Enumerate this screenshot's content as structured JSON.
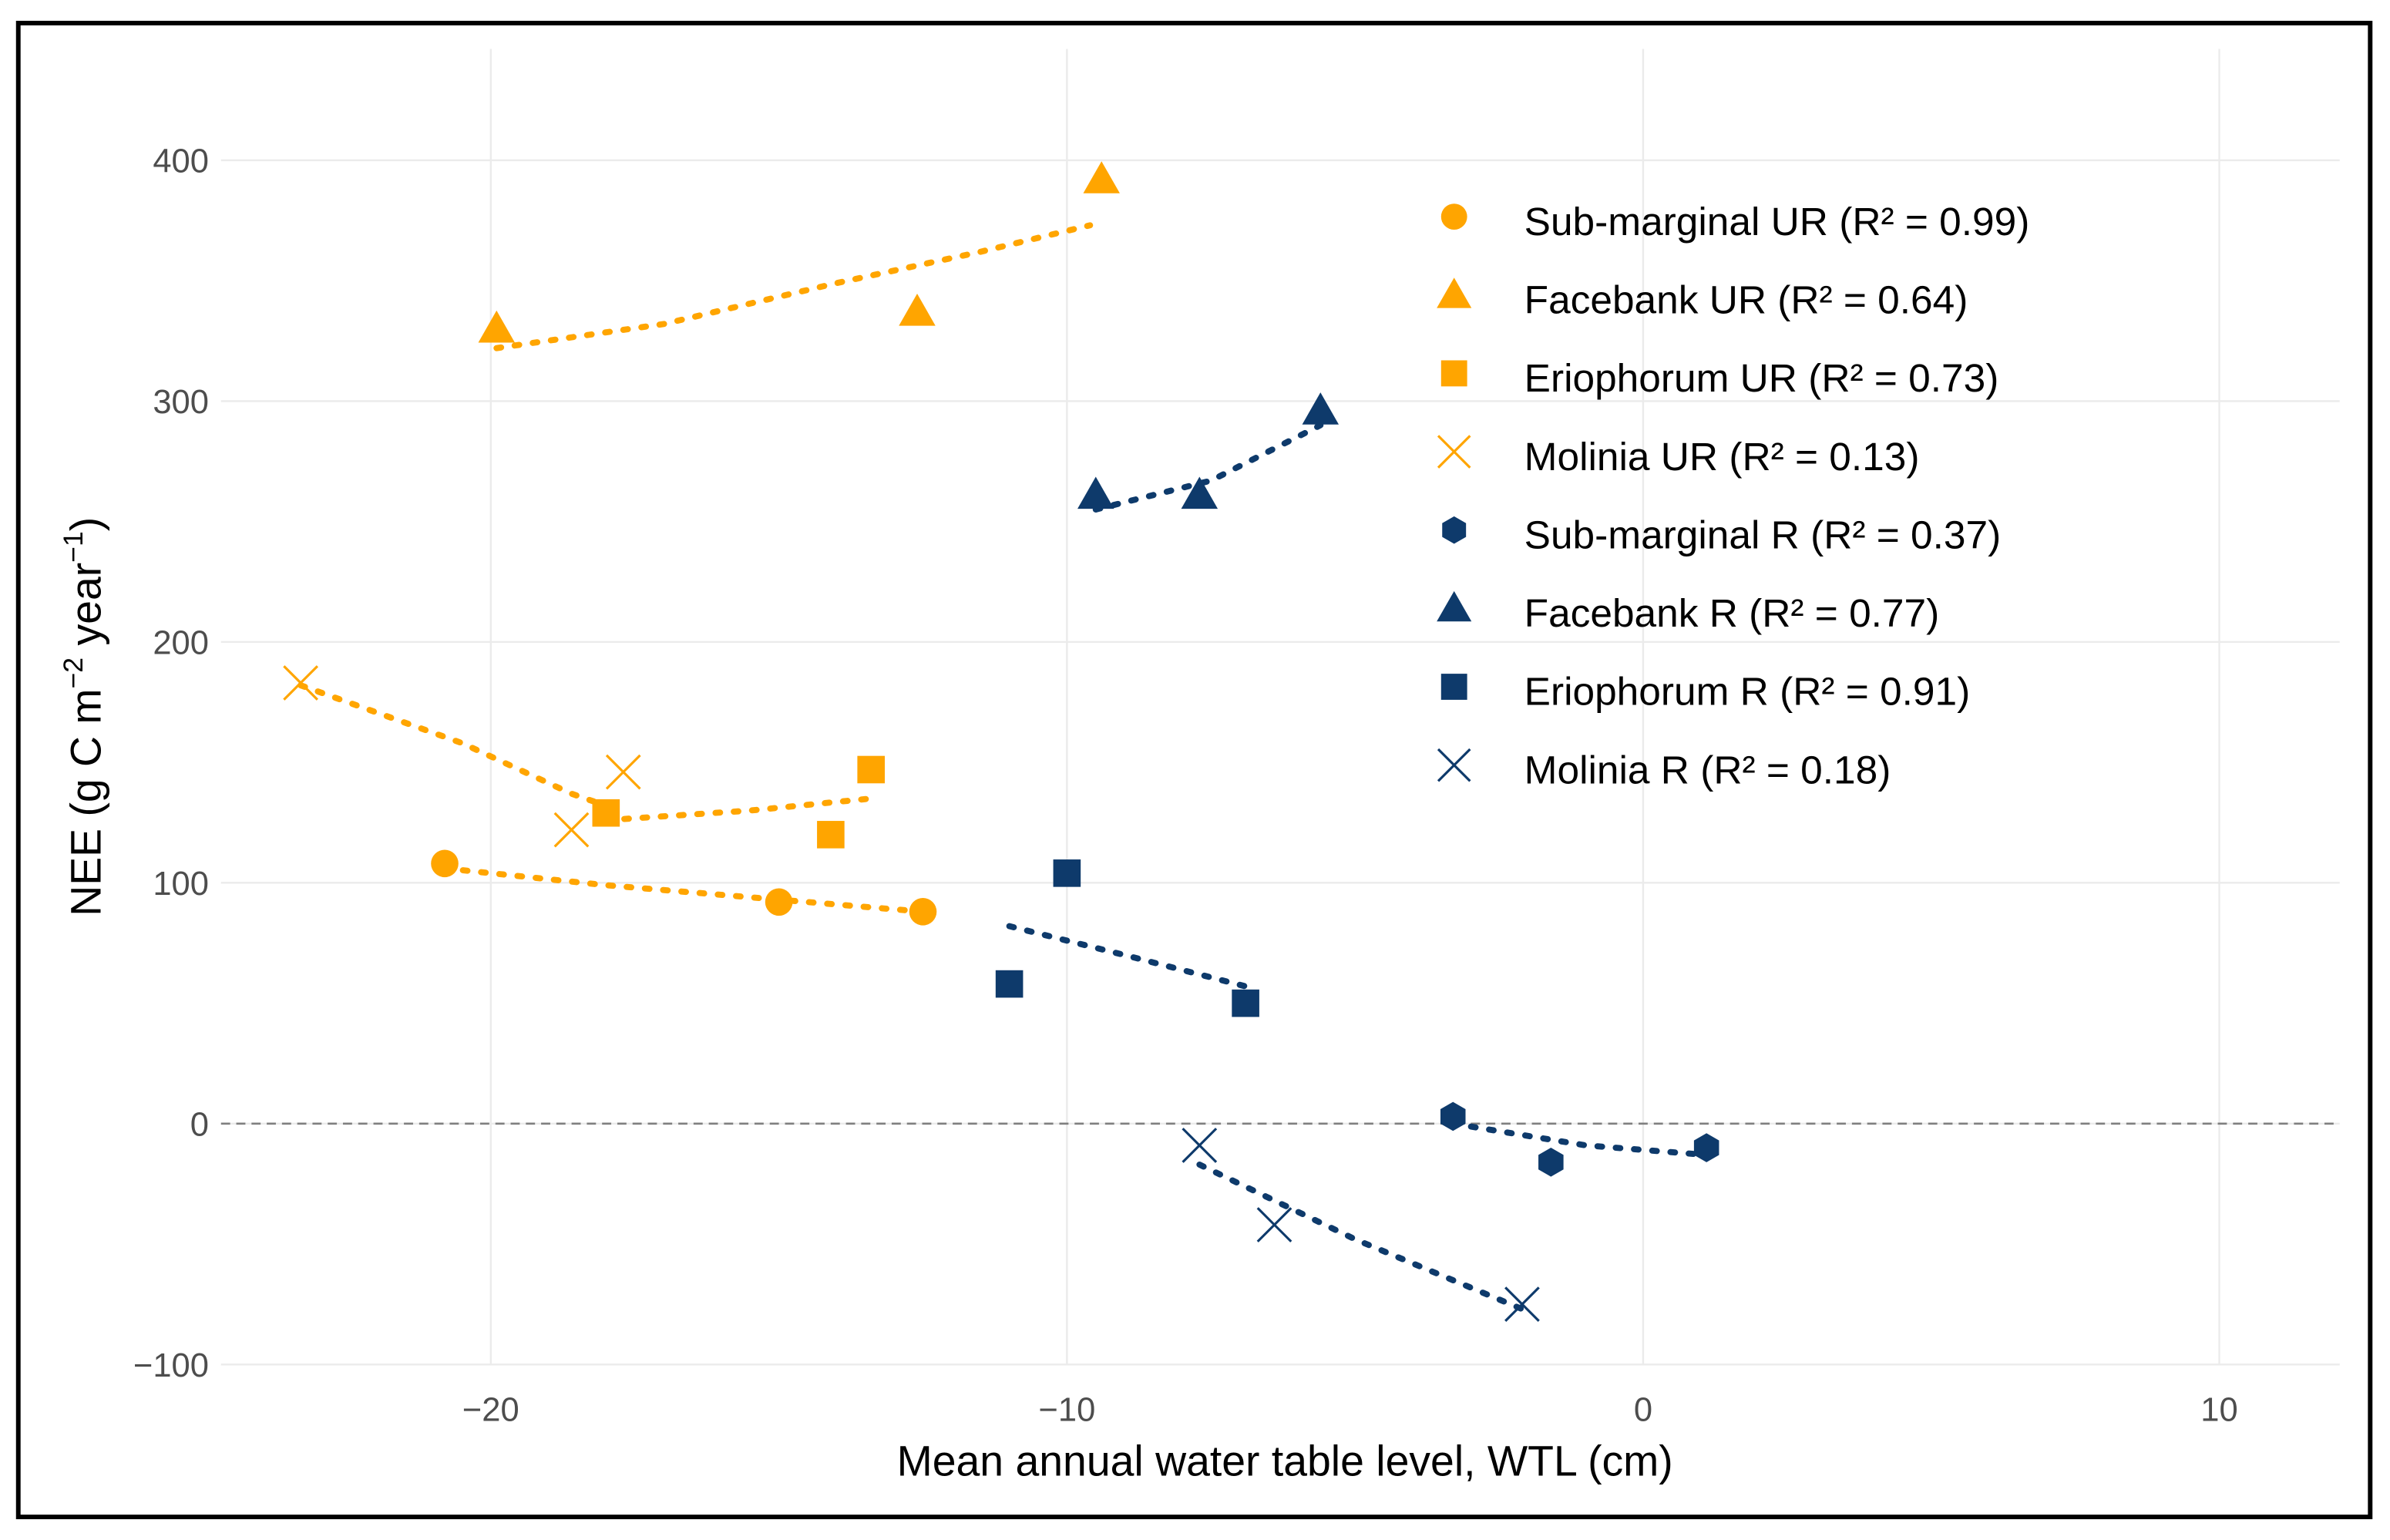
{
  "chart_data": {
    "type": "scatter",
    "title": "",
    "xlabel": "Mean annual water table level, WTL (cm)",
    "ylabel": {
      "main": "NEE (g C m",
      "sup1": "−2",
      "mid": " year",
      "sup2": "−1",
      "end": ")"
    },
    "xlim": [
      -25,
      12
    ],
    "ylim": [
      -100,
      445
    ],
    "xticks": [
      -20,
      -10,
      0,
      10
    ],
    "xtick_labels": [
      "−20",
      "−10",
      "0",
      "10"
    ],
    "yticks": [
      -100,
      0,
      100,
      200,
      300,
      400
    ],
    "ytick_labels": [
      "−100",
      "0",
      "100",
      "200",
      "300",
      "400"
    ],
    "grid": true,
    "reference_line": {
      "y": 0,
      "style": "dashed"
    },
    "legend_position": "top-right",
    "colors": {
      "UR": "#FFA500",
      "R": "#0E3A6B"
    },
    "series": [
      {
        "name": "Sub-marginal UR (R² = 0.99)",
        "group": "UR",
        "marker": "circle",
        "x": [
          -20.8,
          -15.0,
          -12.5
        ],
        "y": [
          108,
          92,
          88
        ],
        "trend": [
          [
            -20.8,
            106
          ],
          [
            -18,
            99
          ],
          [
            -15,
            93
          ],
          [
            -12.5,
            88
          ]
        ]
      },
      {
        "name": "Facebank UR (R² = 0.64)",
        "group": "UR",
        "marker": "triangle",
        "x": [
          -19.9,
          -12.6,
          -9.4
        ],
        "y": [
          330,
          337,
          392
        ],
        "trend": [
          [
            -19.9,
            322
          ],
          [
            -17,
            332
          ],
          [
            -14,
            349
          ],
          [
            -11.5,
            362
          ],
          [
            -9.6,
            373
          ]
        ]
      },
      {
        "name": "Eriophorum UR (R² = 0.73)",
        "group": "UR",
        "marker": "square",
        "x": [
          -18.0,
          -14.1,
          -13.4
        ],
        "y": [
          129,
          120,
          147
        ],
        "trend": [
          [
            -18.0,
            126
          ],
          [
            -15.5,
            130
          ],
          [
            -13.4,
            135
          ]
        ]
      },
      {
        "name": "Molinia UR (R² = 0.13)",
        "group": "UR",
        "marker": "x",
        "x": [
          -23.3,
          -18.6,
          -17.7
        ],
        "y": [
          183,
          122,
          146
        ],
        "trend": [
          [
            -23.3,
            182
          ],
          [
            -20.5,
            158
          ],
          [
            -18.6,
            137
          ],
          [
            -18.0,
            132
          ]
        ]
      },
      {
        "name": "Sub-marginal R (R² = 0.37)",
        "group": "R",
        "marker": "hexagon",
        "x": [
          -3.3,
          -1.6,
          1.1
        ],
        "y": [
          3,
          -16,
          -10
        ],
        "trend": [
          [
            -3.3,
            0
          ],
          [
            -1,
            -9
          ],
          [
            1.1,
            -13
          ]
        ]
      },
      {
        "name": "Facebank R (R² = 0.77)",
        "group": "R",
        "marker": "triangle",
        "x": [
          -9.5,
          -7.7,
          -5.6
        ],
        "y": [
          261,
          261,
          296
        ],
        "trend": [
          [
            -9.5,
            255
          ],
          [
            -7.5,
            267
          ],
          [
            -5.6,
            290
          ]
        ]
      },
      {
        "name": "Eriophorum R (R² = 0.91)",
        "group": "R",
        "marker": "square",
        "x": [
          -11.0,
          -10.0,
          -6.9
        ],
        "y": [
          58,
          104,
          50
        ],
        "trend": [
          [
            -11.0,
            82
          ],
          [
            -9,
            70
          ],
          [
            -6.9,
            57
          ]
        ]
      },
      {
        "name": "Molinia R (R² = 0.18)",
        "group": "R",
        "marker": "x",
        "x": [
          -7.7,
          -6.4,
          -2.1
        ],
        "y": [
          -9,
          -42,
          -75
        ],
        "trend": [
          [
            -7.7,
            -17
          ],
          [
            -5,
            -48
          ],
          [
            -2.1,
            -77
          ]
        ]
      }
    ]
  }
}
